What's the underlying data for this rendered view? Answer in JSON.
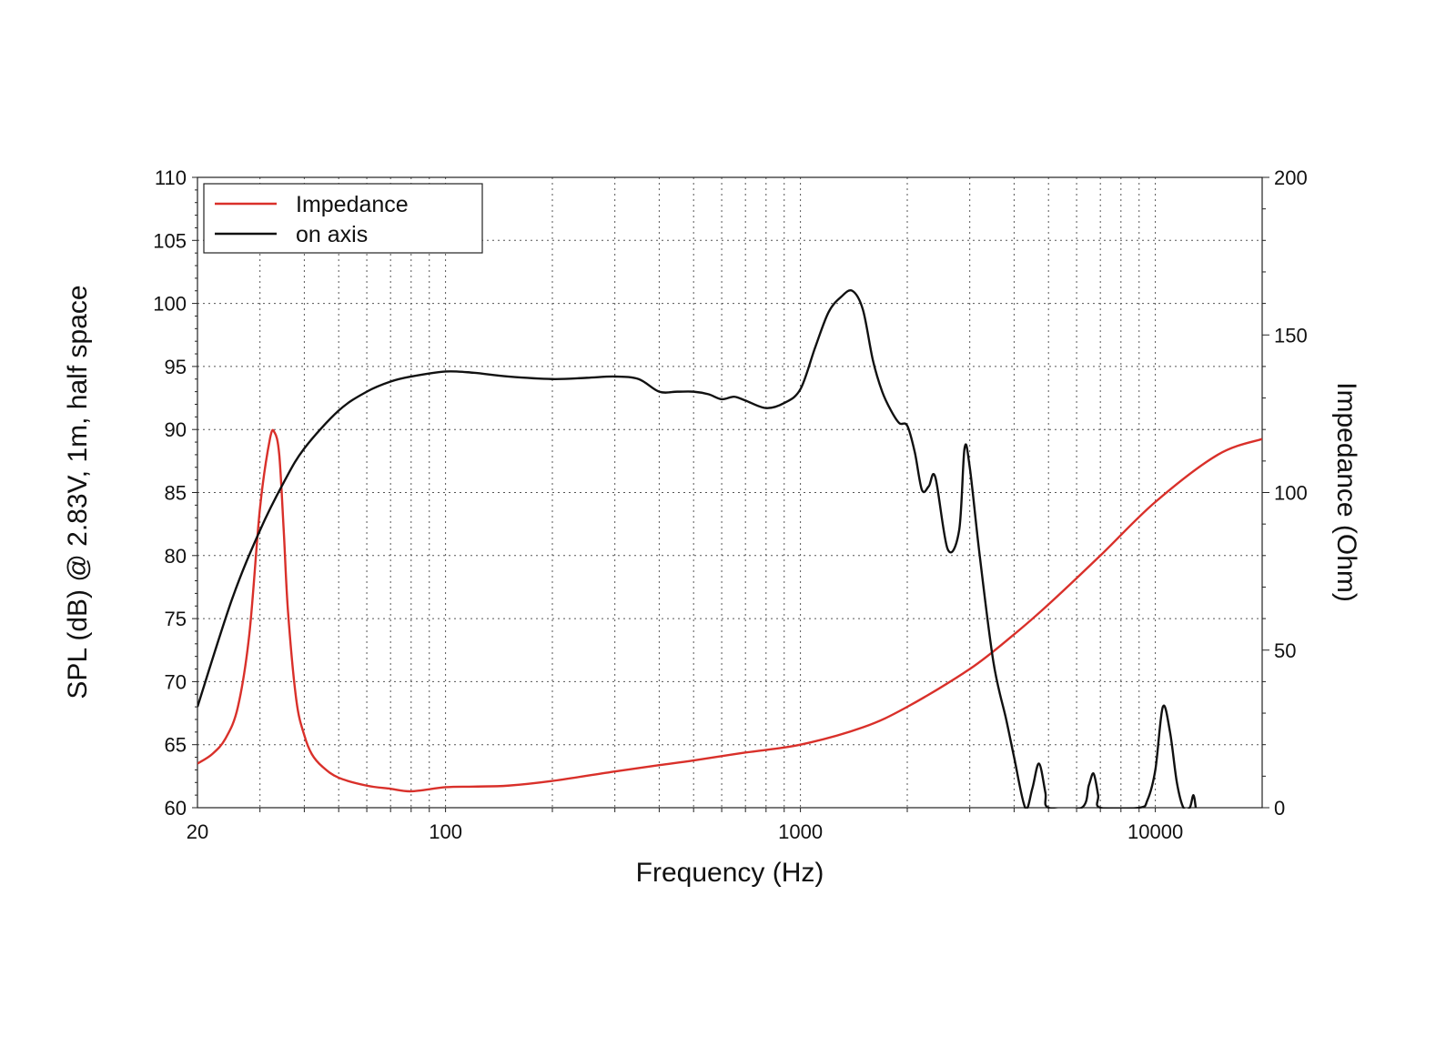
{
  "chart_data": {
    "type": "line",
    "xlabel": "Frequency (Hz)",
    "ylabel_left": "SPL (dB) @ 2.83V, 1m, half space",
    "ylabel_right": "Impedance (Ohm)",
    "x_scale": "log",
    "xlim": [
      20,
      20000
    ],
    "ylim_left": [
      60,
      110
    ],
    "ylim_right": [
      0,
      200
    ],
    "x_tick_labels": [
      20,
      100,
      1000,
      10000
    ],
    "y_left_ticks": [
      60,
      65,
      70,
      75,
      80,
      85,
      90,
      95,
      100,
      105,
      110
    ],
    "y_right_ticks": [
      0,
      50,
      100,
      150,
      200
    ],
    "grid": true,
    "legend_position": "top-left",
    "series": [
      {
        "name": "Impedance",
        "axis": "right",
        "color": "#d9302a",
        "x": [
          20,
          22,
          24,
          26,
          28,
          30,
          32,
          33,
          34,
          35,
          36,
          38,
          40,
          42,
          45,
          50,
          60,
          70,
          80,
          100,
          120,
          150,
          200,
          300,
          400,
          500,
          700,
          1000,
          1500,
          2000,
          3000,
          4000,
          5000,
          7000,
          10000,
          15000,
          20000
        ],
        "y": [
          14,
          17,
          22,
          32,
          55,
          95,
          117,
          119,
          112,
          88,
          62,
          34,
          23,
          17,
          13,
          9.5,
          7,
          6,
          5.2,
          6.5,
          6.7,
          7.0,
          8.5,
          11.5,
          13.5,
          15,
          17.5,
          20,
          25.5,
          32,
          44,
          55,
          64.5,
          80,
          97,
          112,
          117
        ]
      },
      {
        "name": "on axis",
        "axis": "left",
        "color": "#111111",
        "x": [
          20,
          25,
          30,
          35,
          40,
          50,
          60,
          70,
          80,
          100,
          120,
          150,
          200,
          250,
          300,
          350,
          400,
          450,
          500,
          550,
          600,
          650,
          700,
          800,
          900,
          1000,
          1100,
          1200,
          1300,
          1400,
          1500,
          1600,
          1700,
          1800,
          1900,
          2000,
          2100,
          2200,
          2300,
          2400,
          2600,
          2800,
          2900,
          3000,
          3200,
          3500,
          3800,
          4000,
          4300,
          4500,
          4700,
          4900,
          5000,
          6200,
          6500,
          6700,
          6900,
          7000,
          9000,
          9500,
          10000,
          10500,
          11000,
          11500,
          12000,
          12500,
          12800,
          13000
        ],
        "y": [
          68,
          76.5,
          82,
          85.8,
          88.5,
          91.5,
          93,
          93.8,
          94.2,
          94.6,
          94.5,
          94.2,
          94.0,
          94.1,
          94.2,
          94.0,
          93.0,
          93.0,
          93.0,
          92.8,
          92.4,
          92.6,
          92.3,
          91.7,
          92.1,
          93.2,
          96.5,
          99.3,
          100.5,
          101.0,
          99.5,
          95.5,
          93.0,
          91.5,
          90.5,
          90.3,
          88.2,
          85.2,
          85.5,
          86.2,
          80.5,
          82.0,
          88.5,
          87.0,
          80.0,
          71.5,
          67.0,
          64.0,
          60,
          61.5,
          63.5,
          61.2,
          60,
          60,
          61.8,
          62.7,
          61.0,
          60,
          60,
          60.6,
          63.0,
          68.0,
          66.0,
          62.0,
          60.0,
          60.0,
          61.0,
          60.0
        ]
      }
    ]
  }
}
